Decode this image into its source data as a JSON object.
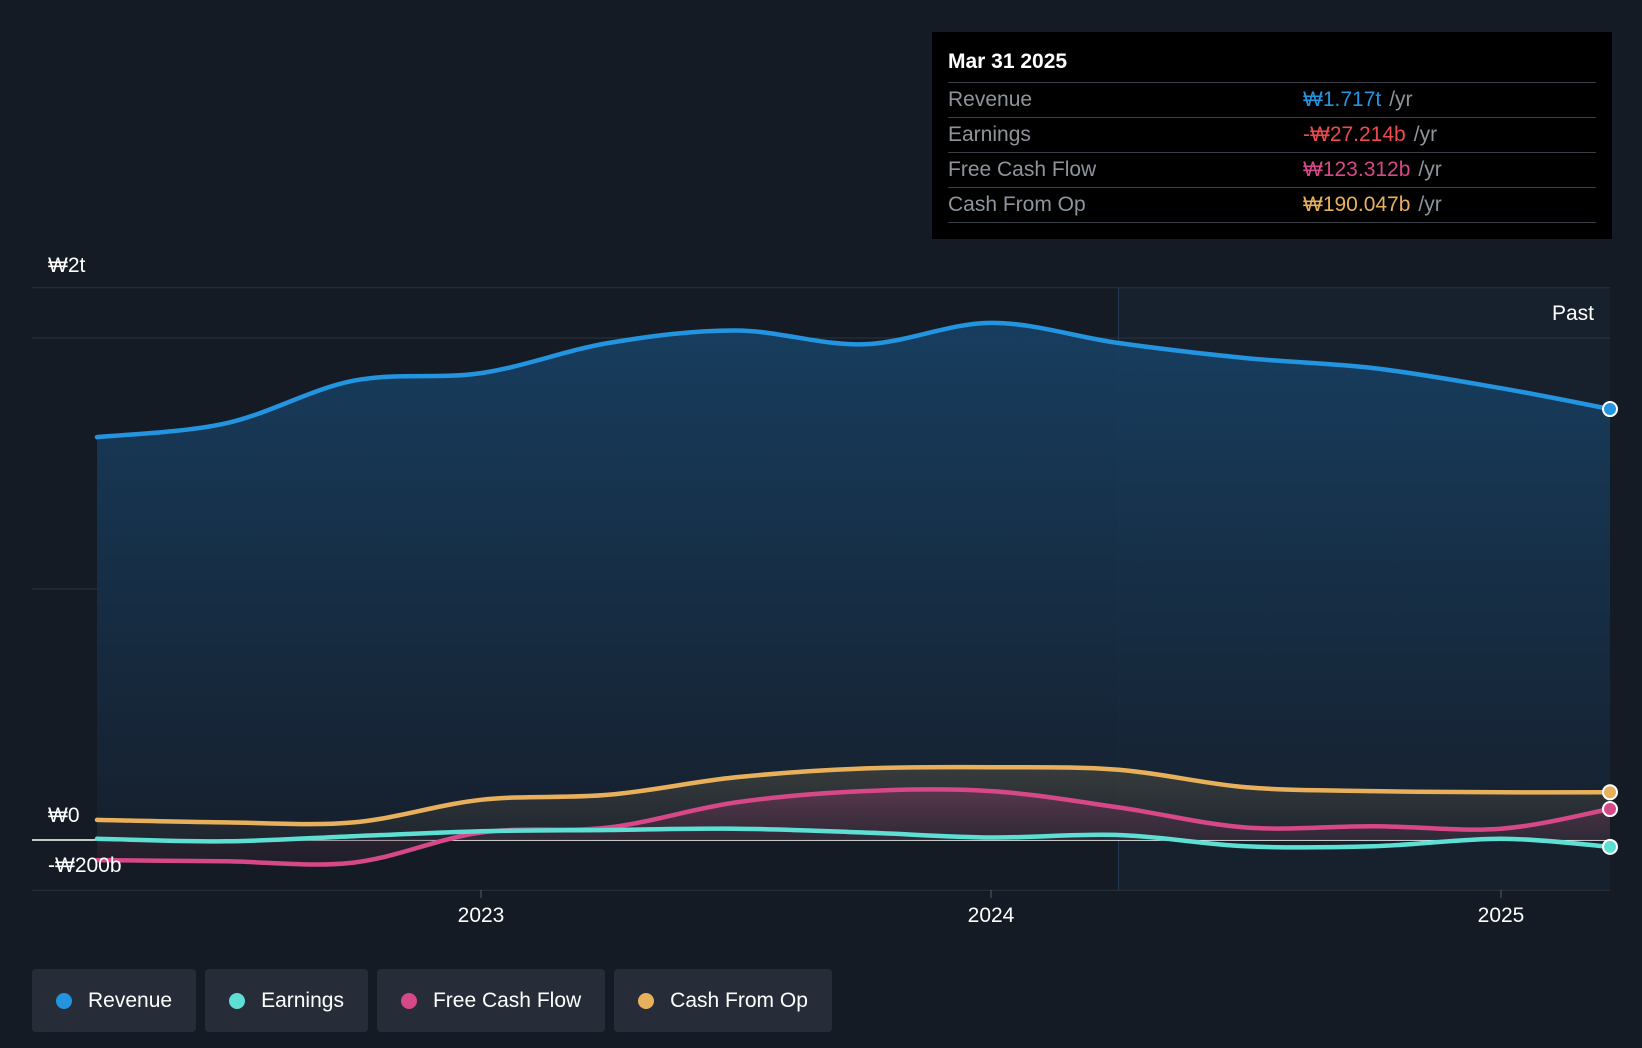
{
  "chart_data": {
    "type": "area",
    "x_axis": {
      "ticks": [
        {
          "label": "2023",
          "value": 2023.0
        },
        {
          "label": "2024",
          "value": 2024.0
        },
        {
          "label": "2025",
          "value": 2025.0
        }
      ],
      "range": [
        2022.27,
        2025.25
      ]
    },
    "y_axis": {
      "unit": "KRW billions",
      "range": [
        -200,
        2200
      ],
      "ticks": [
        {
          "label": "₩2t",
          "value": 2000
        },
        {
          "label": "₩0",
          "value": 0
        },
        {
          "label": "-₩200b",
          "value": -200
        }
      ]
    },
    "past_label": "Past",
    "series": [
      {
        "name": "Revenue",
        "color": "#2394df",
        "x": [
          2022.27,
          2022.5,
          2022.75,
          2023.0,
          2023.25,
          2023.5,
          2023.75,
          2024.0,
          2024.25,
          2024.5,
          2024.75,
          2025.0,
          2025.25
        ],
        "y": [
          1605,
          1660,
          1830,
          1860,
          1980,
          2030,
          1975,
          2060,
          1980,
          1920,
          1880,
          1800,
          1717
        ]
      },
      {
        "name": "Earnings",
        "color": "#5ddfd4",
        "x": [
          2022.27,
          2022.5,
          2022.75,
          2023.0,
          2023.25,
          2023.5,
          2023.75,
          2024.0,
          2024.25,
          2024.5,
          2024.75,
          2025.0,
          2025.25
        ],
        "y": [
          5,
          -5,
          15,
          35,
          40,
          45,
          30,
          10,
          20,
          -25,
          -25,
          5,
          -27.214
        ]
      },
      {
        "name": "Free Cash Flow",
        "color": "#d64888",
        "x": [
          2022.27,
          2022.5,
          2022.75,
          2023.0,
          2023.25,
          2023.5,
          2023.75,
          2024.0,
          2024.25,
          2024.5,
          2024.75,
          2025.0,
          2025.25
        ],
        "y": [
          -80,
          -85,
          -90,
          30,
          50,
          150,
          195,
          195,
          130,
          50,
          55,
          45,
          123.312
        ]
      },
      {
        "name": "Cash From Op",
        "color": "#e9b05c",
        "x": [
          2022.27,
          2022.5,
          2022.75,
          2023.0,
          2023.25,
          2023.5,
          2023.75,
          2024.0,
          2024.25,
          2024.5,
          2024.75,
          2025.0,
          2025.25
        ],
        "y": [
          80,
          70,
          70,
          160,
          180,
          250,
          285,
          290,
          280,
          210,
          195,
          190,
          190.047
        ]
      }
    ],
    "tooltip": {
      "date": "Mar 31 2025",
      "rows": [
        {
          "name": "Revenue",
          "value": "₩1.717t",
          "unit": "/yr",
          "color": "#2394df"
        },
        {
          "name": "Earnings",
          "value": "-₩27.214b",
          "unit": "/yr",
          "color": "#ec4a50"
        },
        {
          "name": "Free Cash Flow",
          "value": "₩123.312b",
          "unit": "/yr",
          "color": "#d64888"
        },
        {
          "name": "Cash From Op",
          "value": "₩190.047b",
          "unit": "/yr",
          "color": "#e9b05c"
        }
      ]
    },
    "legend": [
      {
        "name": "Revenue",
        "color": "#2394df"
      },
      {
        "name": "Earnings",
        "color": "#5ddfd4"
      },
      {
        "name": "Free Cash Flow",
        "color": "#d64888"
      },
      {
        "name": "Cash From Op",
        "color": "#e9b05c"
      }
    ],
    "past_divider_x": 2024.25,
    "colors": {
      "background": "#151b24",
      "grid": "#2c333d",
      "tooltip_bg": "#000000"
    }
  }
}
